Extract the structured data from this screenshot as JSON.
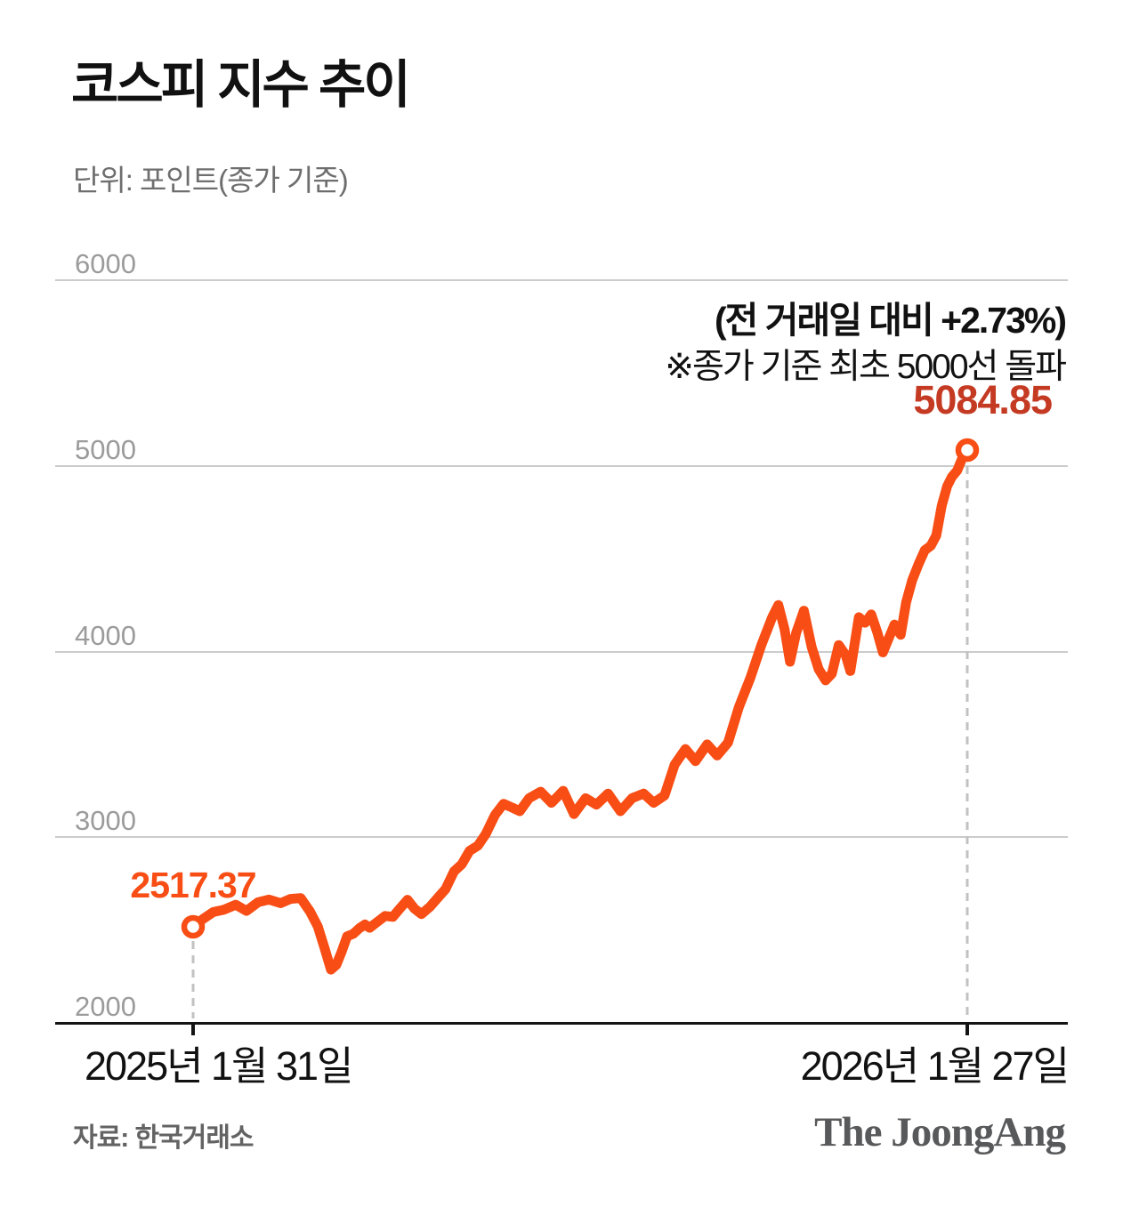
{
  "header": {
    "title": "코스피 지수 추이",
    "subtitle": "단위: 포인트(종가 기준)"
  },
  "annotations": {
    "change_prefix": "(전 거래일 대비 ",
    "change_value": "+2.73%)",
    "note": "※종가 기준 최초 5000선 돌파",
    "start_label": "2517.37",
    "end_label": "5084.85"
  },
  "x_axis": {
    "start": "2025년 1월 31일",
    "end": "2026년 1월 27일"
  },
  "footer": {
    "source": "자료: 한국거래소",
    "logo": "The JoongAng"
  },
  "colors": {
    "line": "#f84d14",
    "start_label": "#f84d14",
    "end_label": "#c43a22",
    "gridline": "#cbcbcb",
    "axis": "#141414",
    "dashed_guide": "#c2c2c2",
    "ytick_text": "#9b9b9b",
    "marker_fill": "#ffffff"
  },
  "chart_data": {
    "type": "line",
    "title": "코스피 지수 추이",
    "unit": "포인트(종가 기준)",
    "series_name": "KOSPI",
    "ylim": [
      2000,
      6000
    ],
    "yticks": [
      2000,
      3000,
      4000,
      5000,
      6000
    ],
    "grid": "horizontal-only",
    "x_range_labels": [
      "2025년 1월 31일",
      "2026년 1월 27일"
    ],
    "start_point": {
      "label": "2025년 1월 31일",
      "value": 2517.37
    },
    "end_point": {
      "label": "2026년 1월 27일",
      "value": 5084.85,
      "change_vs_prev_day": "+2.73%",
      "note": "종가 기준 최초 5000선 돌파"
    },
    "points": [
      [
        0.0,
        2517.37
      ],
      [
        0.013,
        2560
      ],
      [
        0.026,
        2597
      ],
      [
        0.04,
        2610
      ],
      [
        0.055,
        2636
      ],
      [
        0.069,
        2603
      ],
      [
        0.084,
        2650
      ],
      [
        0.098,
        2664
      ],
      [
        0.113,
        2645
      ],
      [
        0.126,
        2668
      ],
      [
        0.139,
        2672
      ],
      [
        0.151,
        2600
      ],
      [
        0.161,
        2520
      ],
      [
        0.17,
        2400
      ],
      [
        0.178,
        2287
      ],
      [
        0.185,
        2312
      ],
      [
        0.192,
        2384
      ],
      [
        0.199,
        2466
      ],
      [
        0.207,
        2480
      ],
      [
        0.215,
        2510
      ],
      [
        0.222,
        2530
      ],
      [
        0.228,
        2512
      ],
      [
        0.239,
        2547
      ],
      [
        0.248,
        2576
      ],
      [
        0.258,
        2571
      ],
      [
        0.267,
        2615
      ],
      [
        0.277,
        2663
      ],
      [
        0.286,
        2615
      ],
      [
        0.295,
        2586
      ],
      [
        0.306,
        2625
      ],
      [
        0.316,
        2673
      ],
      [
        0.326,
        2720
      ],
      [
        0.337,
        2816
      ],
      [
        0.347,
        2854
      ],
      [
        0.357,
        2926
      ],
      [
        0.368,
        2955
      ],
      [
        0.378,
        3017
      ],
      [
        0.39,
        3120
      ],
      [
        0.401,
        3180
      ],
      [
        0.412,
        3160
      ],
      [
        0.422,
        3140
      ],
      [
        0.434,
        3210
      ],
      [
        0.449,
        3245
      ],
      [
        0.463,
        3185
      ],
      [
        0.478,
        3250
      ],
      [
        0.492,
        3125
      ],
      [
        0.507,
        3210
      ],
      [
        0.521,
        3175
      ],
      [
        0.536,
        3235
      ],
      [
        0.552,
        3140
      ],
      [
        0.567,
        3210
      ],
      [
        0.582,
        3235
      ],
      [
        0.595,
        3185
      ],
      [
        0.609,
        3225
      ],
      [
        0.622,
        3390
      ],
      [
        0.636,
        3475
      ],
      [
        0.649,
        3410
      ],
      [
        0.664,
        3500
      ],
      [
        0.677,
        3440
      ],
      [
        0.691,
        3510
      ],
      [
        0.705,
        3700
      ],
      [
        0.72,
        3860
      ],
      [
        0.734,
        4035
      ],
      [
        0.748,
        4185
      ],
      [
        0.756,
        4250
      ],
      [
        0.764,
        4120
      ],
      [
        0.771,
        3945
      ],
      [
        0.779,
        4100
      ],
      [
        0.789,
        4220
      ],
      [
        0.799,
        4025
      ],
      [
        0.808,
        3905
      ],
      [
        0.817,
        3845
      ],
      [
        0.825,
        3880
      ],
      [
        0.834,
        4035
      ],
      [
        0.843,
        3980
      ],
      [
        0.849,
        3895
      ],
      [
        0.86,
        4185
      ],
      [
        0.868,
        4155
      ],
      [
        0.876,
        4200
      ],
      [
        0.884,
        4100
      ],
      [
        0.891,
        3995
      ],
      [
        0.899,
        4075
      ],
      [
        0.906,
        4145
      ],
      [
        0.914,
        4090
      ],
      [
        0.921,
        4265
      ],
      [
        0.929,
        4385
      ],
      [
        0.937,
        4470
      ],
      [
        0.945,
        4545
      ],
      [
        0.953,
        4570
      ],
      [
        0.96,
        4625
      ],
      [
        0.967,
        4785
      ],
      [
        0.974,
        4890
      ],
      [
        0.98,
        4940
      ],
      [
        0.987,
        4975
      ],
      [
        0.993,
        5035
      ],
      [
        1.0,
        5084.85
      ]
    ]
  }
}
